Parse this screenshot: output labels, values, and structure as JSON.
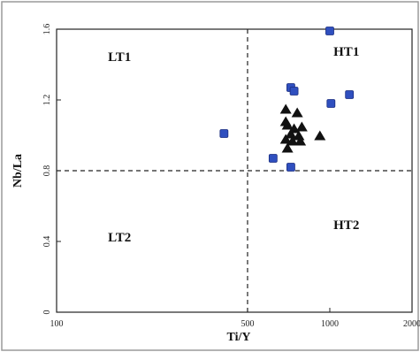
{
  "chart_data": {
    "type": "scatter",
    "title": "",
    "xlabel": "Ti/Y",
    "ylabel": "Nb/La",
    "x_scale": "log",
    "xlim": [
      100,
      2000
    ],
    "ylim": [
      0,
      1.6
    ],
    "x_ticks": [
      100,
      500,
      1000,
      2000
    ],
    "y_ticks": [
      0,
      0.4,
      0.8,
      1.2,
      1.6
    ],
    "y_tick_labels": [
      "0",
      "0.4",
      "0.8",
      "1.2",
      "1.6"
    ],
    "grid": false,
    "dividers": {
      "x": 500,
      "y": 0.8,
      "style": "dashed"
    },
    "region_labels": [
      {
        "text": "LT1",
        "x": 170,
        "y": 1.42
      },
      {
        "text": "HT1",
        "x": 1150,
        "y": 1.45
      },
      {
        "text": "LT2",
        "x": 170,
        "y": 0.4
      },
      {
        "text": "HT2",
        "x": 1150,
        "y": 0.47
      }
    ],
    "series": [
      {
        "marker": "square",
        "color": "#2f4fbf",
        "points": [
          [
            1000,
            1.59
          ],
          [
            720,
            1.27
          ],
          [
            740,
            1.25
          ],
          [
            1180,
            1.23
          ],
          [
            1010,
            1.18
          ],
          [
            410,
            1.01
          ],
          [
            620,
            0.87
          ],
          [
            720,
            0.82
          ]
        ]
      },
      {
        "marker": "triangle",
        "color": "#111111",
        "points": [
          [
            690,
            1.15
          ],
          [
            760,
            1.13
          ],
          [
            690,
            1.08
          ],
          [
            700,
            1.06
          ],
          [
            740,
            1.04
          ],
          [
            790,
            1.05
          ],
          [
            720,
            1.01
          ],
          [
            770,
            1.0
          ],
          [
            920,
            1.0
          ],
          [
            690,
            0.98
          ],
          [
            730,
            0.97
          ],
          [
            780,
            0.97
          ],
          [
            700,
            0.93
          ]
        ]
      }
    ]
  }
}
